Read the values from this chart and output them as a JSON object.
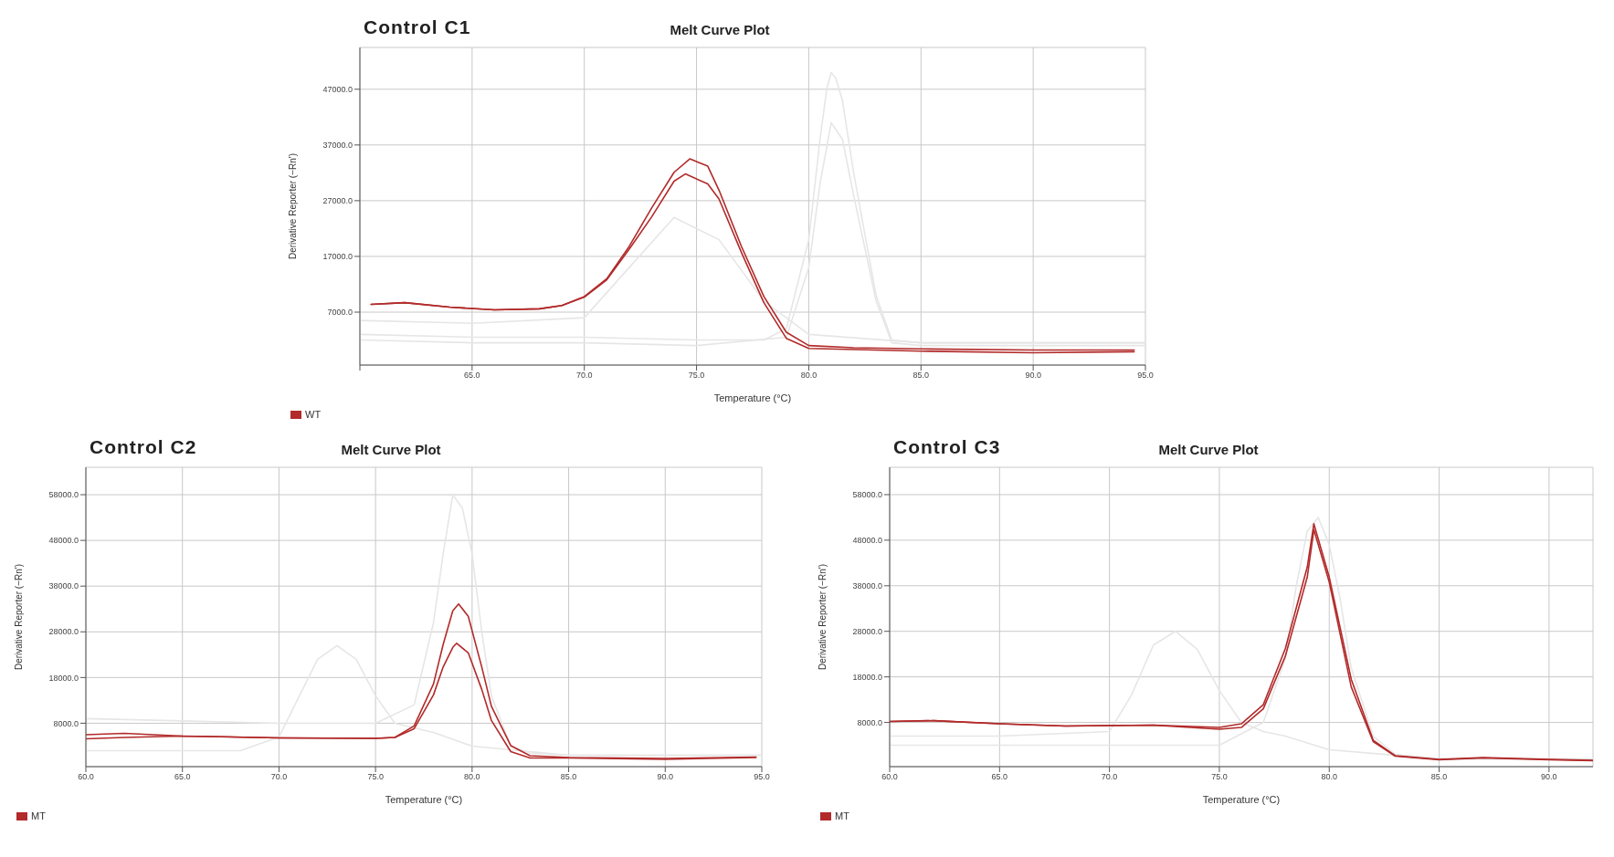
{
  "chart_data": [
    {
      "type": "line",
      "title": "Control C1",
      "subtitle": "Melt Curve Plot",
      "xlabel": "Temperature (°C)",
      "ylabel": "Derivative Reporter (−Rn')",
      "xlim": [
        60,
        95
      ],
      "xticks": [
        {
          "value": 60,
          "label": null
        },
        {
          "value": 65,
          "label": "65.0"
        },
        {
          "value": 70,
          "label": "70.0"
        },
        {
          "value": 75,
          "label": "75.0"
        },
        {
          "value": 80,
          "label": "80.0"
        },
        {
          "value": 85,
          "label": "85.0"
        },
        {
          "value": 90,
          "label": "90.0"
        },
        {
          "value": 95,
          "label": "95.0"
        }
      ],
      "ylim": [
        -2500,
        54500
      ],
      "yticks": [
        {
          "value": 7000,
          "label": "7000.0"
        },
        {
          "value": 17000,
          "label": "17000.0"
        },
        {
          "value": 27000,
          "label": "27000.0"
        },
        {
          "value": 37000,
          "label": "37000.0"
        },
        {
          "value": 47000,
          "label": "47000.0"
        }
      ],
      "grid": true,
      "legend": "bottom left",
      "series": [
        {
          "color": "#e6e6e6",
          "x": [
            60,
            65,
            70,
            75,
            78,
            79,
            80,
            80.5,
            80.8,
            81,
            81.2,
            81.5,
            82,
            83,
            83.7,
            85,
            90,
            95
          ],
          "values": [
            3000,
            2500,
            2500,
            2000,
            2000,
            4000,
            20000,
            38000,
            47000,
            50000,
            49000,
            45000,
            32000,
            10000,
            2000,
            1500,
            1500,
            1500
          ]
        },
        {
          "color": "#e6e6e6",
          "x": [
            60,
            65,
            70,
            72,
            74,
            76,
            78,
            80,
            85,
            95
          ],
          "values": [
            5500,
            5000,
            6000,
            15000,
            24000,
            20000,
            9000,
            3000,
            1500,
            1500
          ]
        },
        {
          "color": "#e6e6e6",
          "x": [
            60,
            65,
            70,
            75,
            79,
            80,
            80.5,
            81,
            81.5,
            82,
            83,
            83.7,
            85,
            95
          ],
          "values": [
            2000,
            1500,
            1500,
            1000,
            2500,
            15000,
            30000,
            41000,
            38000,
            28000,
            9000,
            1500,
            1000,
            1000
          ]
        },
        {
          "name": "WT",
          "color": "#b22a2a",
          "x": [
            60.5,
            62,
            64,
            66,
            68,
            69,
            70,
            71,
            72,
            73,
            74,
            74.7,
            75.5,
            76,
            77,
            78,
            79,
            80,
            82,
            85,
            90,
            94.5
          ],
          "values": [
            8400,
            8700,
            7900,
            7400,
            7600,
            8200,
            9800,
            13000,
            18800,
            25700,
            32100,
            34500,
            33200,
            28900,
            18800,
            9800,
            3400,
            1000,
            600,
            400,
            200,
            200
          ]
        },
        {
          "color": "#b22a2a",
          "x": [
            60.5,
            62,
            64,
            66,
            68,
            69,
            70,
            71,
            72,
            73,
            74,
            74.5,
            75.5,
            76,
            77,
            78,
            79,
            80,
            85,
            90,
            94.5
          ],
          "values": [
            8400,
            8700,
            7900,
            7400,
            7600,
            8200,
            9700,
            12800,
            18300,
            24100,
            30500,
            31800,
            30000,
            27300,
            17700,
            8700,
            2300,
            500,
            0,
            -300,
            -100
          ]
        }
      ]
    },
    {
      "type": "line",
      "title": "Control C2",
      "subtitle": "Melt Curve Plot",
      "xlabel": "Temperature (°C)",
      "ylabel": "Derivative Reporter (−Rn')",
      "xlim": [
        60,
        95
      ],
      "xticks": [
        {
          "value": 60,
          "label": "60.0"
        },
        {
          "value": 65,
          "label": "65.0"
        },
        {
          "value": 70,
          "label": "70.0"
        },
        {
          "value": 75,
          "label": "75.0"
        },
        {
          "value": 80,
          "label": "80.0"
        },
        {
          "value": 85,
          "label": "85.0"
        },
        {
          "value": 90,
          "label": "90.0"
        },
        {
          "value": 95,
          "label": "95.0"
        }
      ],
      "ylim": [
        -1500,
        64000
      ],
      "yticks": [
        {
          "value": 8000,
          "label": "8000.0"
        },
        {
          "value": 18000,
          "label": "18000.0"
        },
        {
          "value": 28000,
          "label": "28000.0"
        },
        {
          "value": 38000,
          "label": "38000.0"
        },
        {
          "value": 48000,
          "label": "48000.0"
        },
        {
          "value": 58000,
          "label": "58000.0"
        }
      ],
      "grid": true,
      "legend": "bottom left",
      "series": [
        {
          "color": "#e6e6e6",
          "x": [
            60,
            65,
            70,
            75,
            77,
            78,
            78.5,
            79,
            79.5,
            80,
            80.5,
            81,
            82,
            83,
            85,
            95
          ],
          "values": [
            9000,
            8500,
            8000,
            8000,
            12000,
            30000,
            45000,
            58000,
            55000,
            45000,
            28000,
            14000,
            3000,
            1500,
            1000,
            1000
          ]
        },
        {
          "color": "#e6e6e6",
          "x": [
            60,
            68,
            70,
            72,
            73,
            74,
            75,
            76,
            78,
            80,
            85,
            95
          ],
          "values": [
            2000,
            2000,
            5000,
            22000,
            25000,
            22000,
            14000,
            8000,
            6000,
            3000,
            1000,
            1000
          ]
        },
        {
          "name": "MT",
          "color": "#b22a2a",
          "x": [
            60,
            62,
            65,
            70,
            75,
            76,
            77,
            78,
            78.5,
            79,
            79.3,
            79.8,
            80.5,
            81,
            82,
            83,
            85,
            90,
            94.7
          ],
          "values": [
            5500,
            5800,
            5200,
            4800,
            4700,
            4900,
            7400,
            16600,
            25200,
            32600,
            34100,
            31400,
            20300,
            11700,
            3100,
            900,
            500,
            300,
            600
          ]
        },
        {
          "color": "#b22a2a",
          "x": [
            60,
            62,
            65,
            70,
            75,
            76,
            77,
            78,
            78.5,
            79,
            79.2,
            79.8,
            80.5,
            81,
            82,
            83,
            85,
            90,
            94.7
          ],
          "values": [
            4600,
            4900,
            5200,
            4800,
            4700,
            4900,
            6800,
            14200,
            20300,
            24600,
            25500,
            23400,
            15400,
            8600,
            1800,
            400,
            400,
            100,
            500
          ]
        }
      ]
    },
    {
      "type": "line",
      "title": "Control C3",
      "subtitle": "Melt Curve Plot",
      "xlabel": "Temperature (°C)",
      "ylabel": "Derivative Reporter (−Rn')",
      "xlim": [
        60,
        92
      ],
      "xticks": [
        {
          "value": 60,
          "label": "60.0"
        },
        {
          "value": 65,
          "label": "65.0"
        },
        {
          "value": 70,
          "label": "70.0"
        },
        {
          "value": 75,
          "label": "75.0"
        },
        {
          "value": 80,
          "label": "80.0"
        },
        {
          "value": 85,
          "label": "85.0"
        },
        {
          "value": 90,
          "label": "90.0"
        }
      ],
      "ylim": [
        -1700,
        64000
      ],
      "yticks": [
        {
          "value": 8000,
          "label": "8000.0"
        },
        {
          "value": 18000,
          "label": "18000.0"
        },
        {
          "value": 28000,
          "label": "28000.0"
        },
        {
          "value": 38000,
          "label": "38000.0"
        },
        {
          "value": 48000,
          "label": "48000.0"
        },
        {
          "value": 58000,
          "label": "58000.0"
        }
      ],
      "grid": true,
      "legend": "bottom left",
      "series": [
        {
          "color": "#e6e6e6",
          "x": [
            60,
            65,
            70,
            75,
            77,
            78,
            78.5,
            79,
            79.5,
            80,
            80.5,
            81,
            82,
            83,
            85,
            92
          ],
          "values": [
            3000,
            3000,
            3000,
            3000,
            8000,
            22000,
            38000,
            50000,
            53000,
            47000,
            35000,
            20000,
            5000,
            1000,
            0,
            0
          ]
        },
        {
          "color": "#e6e6e6",
          "x": [
            60,
            65,
            70,
            71,
            72,
            73,
            74,
            75,
            76,
            77,
            78,
            80,
            85,
            92
          ],
          "values": [
            5000,
            5000,
            6000,
            14000,
            25000,
            28000,
            24000,
            15000,
            8000,
            6000,
            5000,
            2000,
            0,
            0
          ]
        },
        {
          "name": "MT",
          "color": "#b22a2a",
          "x": [
            60,
            62,
            65,
            68,
            72,
            75,
            76,
            77,
            78,
            79,
            79.3,
            80,
            81,
            82,
            83,
            85,
            87,
            90,
            92
          ],
          "values": [
            8200,
            8400,
            7700,
            7200,
            7400,
            6900,
            7700,
            11900,
            24200,
            42100,
            51600,
            39900,
            17500,
            4100,
            700,
            -100,
            300,
            -100,
            -300
          ]
        },
        {
          "color": "#b22a2a",
          "x": [
            60,
            62,
            65,
            68,
            72,
            75,
            76,
            77,
            78,
            79,
            79.3,
            80,
            81,
            82,
            83,
            85,
            87,
            90,
            92
          ],
          "values": [
            8200,
            8400,
            7700,
            7200,
            7400,
            6500,
            6900,
            11000,
            22500,
            39900,
            50300,
            38800,
            15800,
            3800,
            600,
            -200,
            200,
            -200,
            -400
          ]
        }
      ]
    }
  ]
}
